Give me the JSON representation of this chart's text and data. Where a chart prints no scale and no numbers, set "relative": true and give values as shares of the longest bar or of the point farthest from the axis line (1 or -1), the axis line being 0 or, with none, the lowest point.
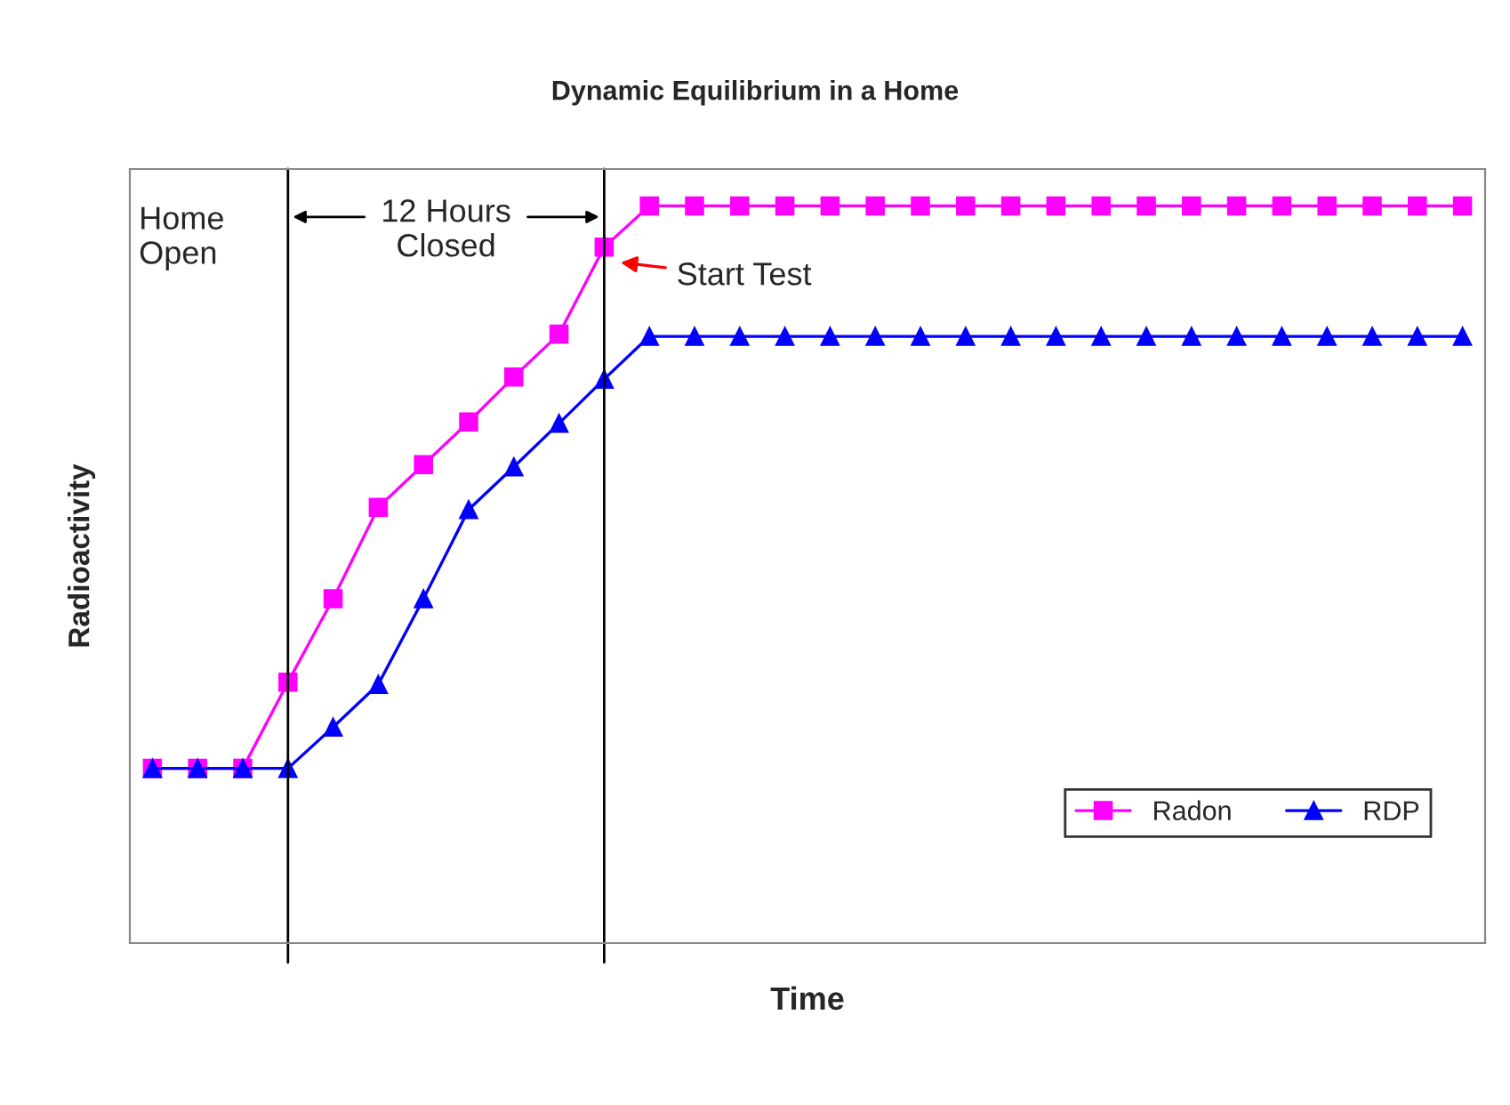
{
  "chart_data": {
    "type": "line",
    "title": "Dynamic Equilibrium in a Home",
    "xlabel": "Time",
    "ylabel": "Radioactivity",
    "relative": true,
    "categories": [
      null,
      null,
      null,
      null,
      null,
      null,
      null,
      null,
      null,
      null,
      null,
      null,
      null,
      null,
      null,
      null,
      null,
      null,
      null,
      null,
      null,
      null,
      null,
      null,
      null,
      null,
      null,
      null,
      null,
      null
    ],
    "series": [
      {
        "name": "Radon",
        "color": "#ff00ff",
        "marker": "square",
        "values": [
          0.237,
          0.237,
          0.237,
          0.354,
          0.467,
          0.591,
          0.649,
          0.707,
          0.768,
          0.826,
          0.944,
          1,
          1,
          1,
          1,
          1,
          1,
          1,
          1,
          1,
          1,
          1,
          1,
          1,
          1,
          1,
          1,
          1,
          1,
          1
        ]
      },
      {
        "name": "RDP",
        "color": "#0000ff",
        "marker": "triangle",
        "values": [
          0.237,
          0.237,
          0.237,
          0.237,
          0.293,
          0.351,
          0.467,
          0.588,
          0.646,
          0.705,
          0.765,
          0.823,
          0.823,
          0.823,
          0.823,
          0.823,
          0.823,
          0.823,
          0.823,
          0.823,
          0.823,
          0.823,
          0.823,
          0.823,
          0.823,
          0.823,
          0.823,
          0.823,
          0.823,
          0.823
        ]
      }
    ],
    "annotations": [
      "Home\nOpen",
      "12 Hours\nClosed",
      "Start Test"
    ],
    "legend": "bottom right",
    "grid": false,
    "line_style": "solid"
  }
}
